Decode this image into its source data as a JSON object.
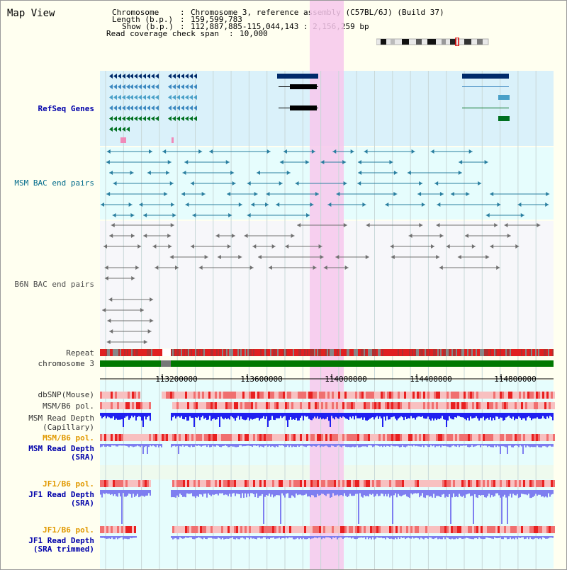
{
  "title": "Map View",
  "header": {
    "chromosome_label": "Chromosome",
    "chromosome_value": "Chromosome 3, reference assembly (C57BL/6J) (Build 37)",
    "length_label": "Length (b.p.)",
    "length_value": "159,599,783",
    "show_label": "Show (b.p.)",
    "show_value": "112,887,885-115,044,143 : 2,156,259 bp",
    "coverage_label": "Read coverage check span",
    "coverage_value": "10,000"
  },
  "tracks": {
    "refseq": "RefSeq Genes",
    "msm_bac": "MSM BAC end pairs",
    "b6n_bac": "B6N BAC end pairs",
    "repeat": "Repeat",
    "chromosome": "chromosome 3",
    "dbsnp": "dbSNP(Mouse)",
    "msm_b6_pol": "MSM/B6 pol.",
    "msm_read_cap_1": "MSM Read Depth",
    "msm_read_cap_2": "(Capillary)",
    "msm_b6_pol_2": "MSM/B6 pol.",
    "msm_read_sra_1": "MSM Read Depth",
    "msm_read_sra_2": "(SRA)",
    "jf1_b6_pol": "JF1/B6 pol.",
    "jf1_read_sra_1": "JF1 Read Depth",
    "jf1_read_sra_2": "(SRA)",
    "jf1_b6_pol_2": "JF1/B6 pol.",
    "jf1_read_trim_1": "JF1 Read Depth",
    "jf1_read_trim_2": "(SRA trimmed)"
  },
  "axis_ticks": [
    "113200000",
    "113600000",
    "114000000",
    "114400000",
    "114800000"
  ],
  "colors": {
    "refseq_bg": "#daf1fa",
    "bac_bg": "#e6fdfd",
    "b6n_bg": "#f7f7fa",
    "highlight": "#f7c8ec",
    "chromosome_bar": "#007800",
    "repeat_red": "#e02020",
    "read_depth_blue": "#2020f0",
    "read_depth_light": "#7e7ef0"
  }
}
